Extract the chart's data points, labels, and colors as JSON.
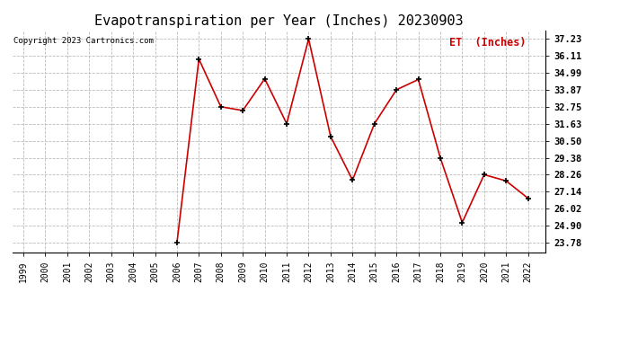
{
  "title": "Evapotranspiration per Year (Inches) 20230903",
  "copyright": "Copyright 2023 Cartronics.com",
  "legend_label": "ET  (Inches)",
  "years": [
    1999,
    2000,
    2001,
    2002,
    2003,
    2004,
    2005,
    2006,
    2007,
    2008,
    2009,
    2010,
    2011,
    2012,
    2013,
    2014,
    2015,
    2016,
    2017,
    2018,
    2019,
    2020,
    2021,
    2022
  ],
  "values": [
    null,
    null,
    null,
    null,
    null,
    null,
    null,
    23.78,
    35.9,
    32.75,
    32.5,
    34.6,
    31.63,
    37.23,
    30.8,
    27.9,
    31.63,
    33.87,
    34.55,
    29.38,
    25.1,
    28.26,
    27.85,
    26.7
  ],
  "line_color": "#cc0000",
  "marker_color": "#000000",
  "background_color": "#ffffff",
  "grid_color": "#bbbbbb",
  "yticks": [
    23.78,
    24.9,
    26.02,
    27.14,
    28.26,
    29.38,
    30.5,
    31.63,
    32.75,
    33.87,
    34.99,
    36.11,
    37.23
  ],
  "ylim_min": 23.1,
  "ylim_max": 37.8,
  "title_fontsize": 11,
  "copyright_fontsize": 6.5,
  "legend_fontsize": 8.5,
  "tick_fontsize": 7,
  "ytick_fontsize": 7.5
}
